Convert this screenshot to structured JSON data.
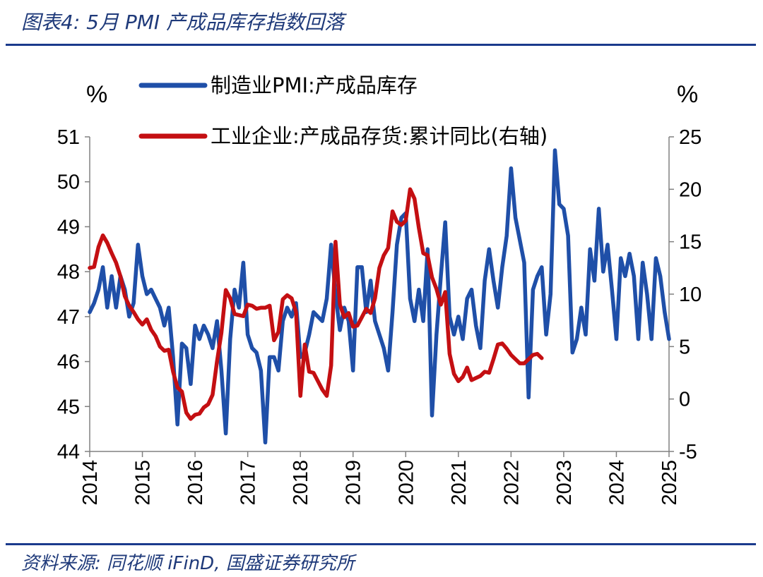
{
  "header": {
    "title": "图表4:  5月 PMI 产成品库存指数回落"
  },
  "footer": {
    "source": "资料来源:  同花顺 iFinD,  国盛证券研究所"
  },
  "colors": {
    "pmi": "#1f4fa8",
    "inventory": "#c40f12",
    "title": "#1f3a7a",
    "rule": "#1a3a8c"
  },
  "chart_data": {
    "type": "line",
    "title": "",
    "ylabel_left": "%",
    "ylabel_right": "%",
    "ylim_left": [
      44,
      51
    ],
    "ylim_right": [
      -5,
      25
    ],
    "yticks_left": [
      "44",
      "45",
      "46",
      "47",
      "48",
      "49",
      "50",
      "51"
    ],
    "yticks_right": [
      "-5",
      "0",
      "5",
      "10",
      "15",
      "20",
      "25"
    ],
    "xlim": [
      2014,
      2025
    ],
    "xticks": [
      "2014",
      "2015",
      "2016",
      "2017",
      "2018",
      "2019",
      "2020",
      "2021",
      "2022",
      "2023",
      "2024",
      "2025"
    ],
    "legend_position": "top-left",
    "series": [
      {
        "name": "制造业PMI:产成品库存",
        "axis": "left",
        "x_start": "2014-01",
        "frequency": "monthly",
        "values": [
          47.1,
          47.3,
          47.6,
          48.1,
          47.2,
          47.9,
          47.2,
          47.9,
          47.6,
          47.0,
          47.3,
          48.6,
          47.9,
          47.5,
          47.6,
          47.4,
          47.2,
          46.8,
          47.2,
          46.1,
          44.6,
          46.4,
          46.3,
          45.5,
          46.8,
          46.5,
          46.8,
          46.6,
          46.3,
          46.9,
          45.8,
          44.4,
          46.5,
          47.6,
          47.2,
          48.2,
          46.6,
          46.3,
          46.2,
          45.8,
          44.2,
          46.1,
          46.1,
          45.8,
          46.9,
          47.2,
          47.0,
          47.3,
          46.1,
          46.2,
          46.6,
          47.1,
          47.0,
          46.9,
          47.4,
          48.6,
          47.5,
          46.7,
          47.2,
          46.9,
          45.8,
          48.1,
          48.1,
          47.1,
          47.8,
          46.9,
          46.6,
          46.3,
          45.8,
          47.1,
          48.6,
          49.2,
          49.3,
          47.4,
          46.9,
          47.6,
          46.9,
          48.5,
          44.8,
          46.6,
          47.9,
          49.1,
          47.0,
          46.6,
          47.0,
          46.5,
          47.4,
          47.6,
          46.8,
          46.3,
          47.8,
          48.5,
          47.8,
          47.2,
          48.1,
          48.8,
          50.3,
          49.2,
          48.7,
          48.2,
          45.2,
          47.6,
          47.9,
          48.1,
          46.6,
          47.5,
          50.7,
          49.5,
          49.4,
          48.8,
          46.2,
          46.5,
          47.2,
          46.6,
          48.5,
          47.8,
          49.4,
          48.0,
          48.6,
          47.6,
          46.5,
          48.3,
          47.9,
          48.4,
          47.9,
          46.5,
          48.2,
          47.5,
          46.5,
          48.3,
          47.9,
          47.1,
          46.5
        ]
      },
      {
        "name": "工业企业:产成品存货:累计同比(右轴)",
        "axis": "right",
        "x_start": "2014-01",
        "frequency": "monthly",
        "values": [
          12.5,
          12.6,
          14.5,
          15.6,
          14.9,
          13.9,
          13.0,
          11.7,
          9.8,
          8.9,
          8.3,
          7.6,
          7.1,
          7.6,
          6.6,
          6.0,
          5.0,
          4.6,
          4.7,
          2.6,
          1.1,
          0.7,
          -1.3,
          -1.9,
          -1.5,
          -1.4,
          -0.8,
          -0.5,
          0.4,
          3.6,
          6.3,
          10.4,
          9.6,
          8.1,
          8.0,
          7.9,
          9.0,
          8.9,
          8.6,
          8.7,
          8.7,
          8.9,
          5.6,
          6.4,
          9.5,
          9.9,
          9.6,
          8.3,
          0.3,
          5.2,
          2.6,
          2.5,
          1.7,
          0.9,
          0.3,
          3.2,
          15.0,
          9.0,
          7.8,
          8.2,
          6.9,
          7.0,
          7.8,
          8.6,
          8.2,
          9.6,
          12.5,
          13.7,
          14.4,
          17.9,
          16.9,
          16.6,
          17.0,
          20.0,
          19.1,
          16.3,
          13.9,
          13.7,
          11.6,
          10.5,
          9.0,
          10.2,
          4.3,
          2.4,
          1.7,
          2.1,
          3.0,
          1.8,
          2.0,
          2.2,
          2.6,
          2.5,
          3.8,
          5.2,
          5.3,
          4.8,
          4.2,
          3.8,
          3.4,
          3.4,
          3.8,
          4.2,
          4.3,
          3.9
        ]
      }
    ]
  }
}
